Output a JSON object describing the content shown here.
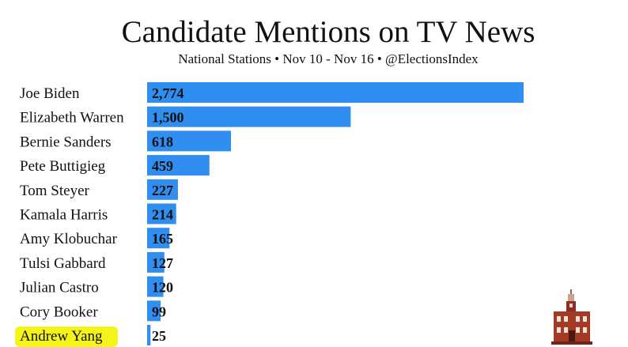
{
  "header": {
    "title": "Candidate Mentions on TV News",
    "subtitle": "National Stations • Nov 10 - Nov 16 • @ElectionsIndex"
  },
  "colors": {
    "bar": "#2f8ef0",
    "highlight": "#f4f31a",
    "text": "#111111"
  },
  "highlight_category": "Andrew Yang",
  "logo_icon": "independence-hall-icon",
  "chart_data": {
    "type": "bar",
    "orientation": "horizontal",
    "title": "Candidate Mentions on TV News",
    "subtitle": "National Stations • Nov 10 - Nov 16 • @ElectionsIndex",
    "categories": [
      "Joe Biden",
      "Elizabeth Warren",
      "Bernie Sanders",
      "Pete Buttigieg",
      "Tom Steyer",
      "Kamala Harris",
      "Amy Klobuchar",
      "Tulsi Gabbard",
      "Julian Castro",
      "Cory Booker",
      "Andrew Yang"
    ],
    "values": [
      2774,
      1500,
      618,
      459,
      227,
      214,
      165,
      127,
      120,
      99,
      25
    ],
    "data_labels": [
      "2,774",
      "1,500",
      "618",
      "459",
      "227",
      "214",
      "165",
      "127",
      "120",
      "99",
      "25"
    ],
    "xlim": [
      0,
      2774
    ],
    "grid": false,
    "legend": "none",
    "xlabel": "",
    "ylabel": ""
  }
}
